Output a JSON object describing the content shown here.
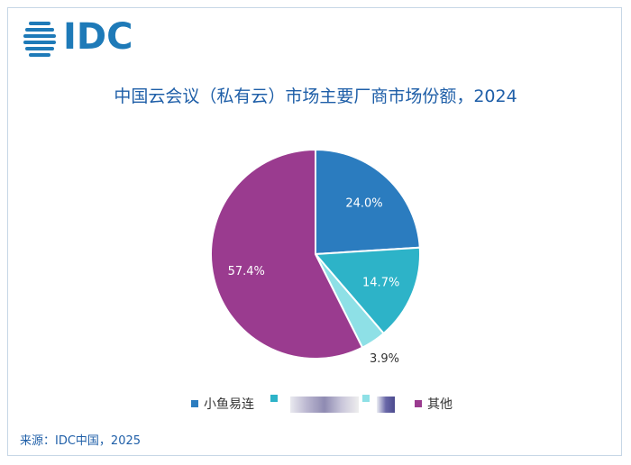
{
  "logo": {
    "text": "IDC",
    "icon": "idc-globe-icon",
    "color": "#1e7ab8"
  },
  "chart_data": {
    "type": "pie",
    "title": "中国云会议（私有云）市场主要厂商市场份额，2024",
    "categories": [
      "小鱼易连",
      "",
      "",
      "其他"
    ],
    "values": [
      24.0,
      14.7,
      3.9,
      57.4
    ],
    "labels": [
      "24.0%",
      "14.7%",
      "3.9%",
      "57.4%"
    ],
    "colors": [
      "#2b7cbf",
      "#2db3c8",
      "#8ee0e6",
      "#9a3b8f"
    ],
    "start_angle_deg": 0,
    "direction": "clockwise",
    "legend_position": "bottom"
  },
  "source": "来源：IDC中国，2025"
}
